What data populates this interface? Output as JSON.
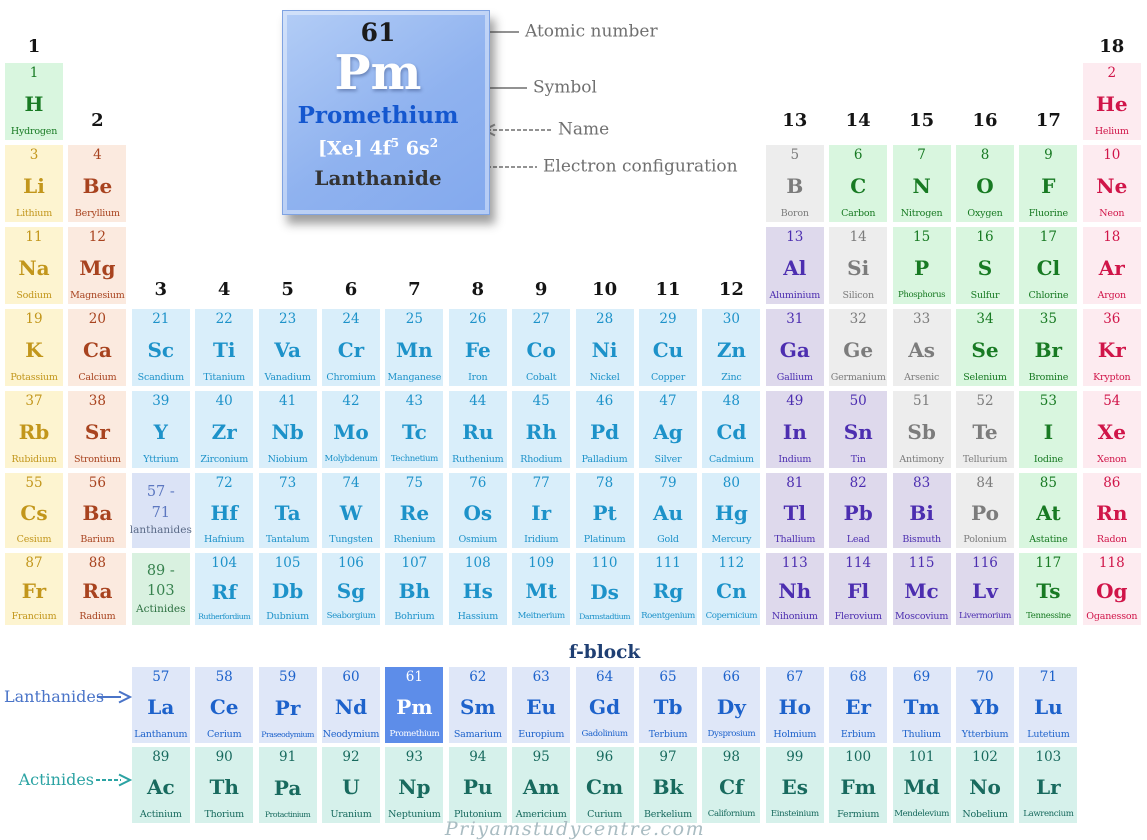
{
  "detail_card": {
    "atomic_number": "61",
    "symbol": "Pm",
    "name": "Promethium",
    "electron_config": [
      {
        "t": "[Xe] 4f"
      },
      {
        "t": "5",
        "sup": true
      },
      {
        "t": " 6s"
      },
      {
        "t": "2",
        "sup": true
      }
    ],
    "category": "Lanthanide"
  },
  "annotations": [
    "Atomic number",
    "Symbol",
    "Name",
    "Electron configuration"
  ],
  "group_labels": [
    "1",
    "2",
    "3",
    "4",
    "5",
    "6",
    "7",
    "8",
    "9",
    "10",
    "11",
    "12",
    "13",
    "14",
    "15",
    "16",
    "17",
    "18"
  ],
  "series_labels": {
    "lanthanides": "Lanthanides",
    "actinides": "Actinides"
  },
  "fblock_label": "f-block",
  "watermark": "Priyamstudycentre.com",
  "colors": {
    "alkali": {
      "bg": "#fdf4d0",
      "fg": "#c2961b"
    },
    "alkaline": {
      "bg": "#fbeadf",
      "fg": "#a8431f"
    },
    "transition": {
      "bg": "#d9eefa",
      "fg": "#1d92c9"
    },
    "post": {
      "bg": "#ded9ec",
      "fg": "#4c2eb0"
    },
    "metalloid": {
      "bg": "#ededed",
      "fg": "#7c7c7c"
    },
    "nonmetal": {
      "bg": "#d9f6df",
      "fg": "#187a23"
    },
    "noble": {
      "bg": "#fdebf0",
      "fg": "#d01549"
    },
    "lan": {
      "bg": "#dfe7f8",
      "fg": "#1d62cb"
    },
    "lan_hl": {
      "bg": "#5d8de9",
      "fg": "#ffffff"
    },
    "act": {
      "bg": "#d6f1eb",
      "fg": "#186a5e"
    },
    "ph_lan": {
      "bg": "#dbe3f6",
      "fg": "#5c77c0",
      "fg2": "#5a6a87"
    },
    "ph_act": {
      "bg": "#d9f1e0",
      "fg": "#36824e",
      "fg2": "#2c7040"
    },
    "card_number": "#1b1b1b",
    "card_name_blue": "#1457cf",
    "card_category": "#333333",
    "annotation_gray": "#6f6f6f",
    "arrow_gray": "#929292",
    "group_label_dark": "#141414",
    "lan_label_blue": "#4a74c8",
    "act_label_teal": "#2ba3a3",
    "fblock_dark": "#1f3f73",
    "watermark_gray": "#a9bcc2"
  },
  "placeholders": [
    {
      "lines": [
        "57 -",
        "71",
        "lanthanides"
      ],
      "cat": "ph_lan",
      "col": 3,
      "row": 6,
      "key": "lanthanides"
    },
    {
      "lines": [
        "89 -",
        "103",
        "Actinides"
      ],
      "cat": "ph_act",
      "col": 3,
      "row": 7,
      "key": "actinides"
    }
  ],
  "elements": [
    {
      "n": "1",
      "s": "H",
      "name": "Hydrogen",
      "cat": "nonmetal",
      "col": 1,
      "row": 1
    },
    {
      "n": "2",
      "s": "He",
      "name": "Helium",
      "cat": "noble",
      "col": 18,
      "row": 1
    },
    {
      "n": "3",
      "s": "Li",
      "name": "Lithium",
      "cat": "alkali",
      "col": 1,
      "row": 2
    },
    {
      "n": "4",
      "s": "Be",
      "name": "Beryllium",
      "cat": "alkaline",
      "col": 2,
      "row": 2
    },
    {
      "n": "5",
      "s": "B",
      "name": "Boron",
      "cat": "metalloid",
      "col": 13,
      "row": 2
    },
    {
      "n": "6",
      "s": "C",
      "name": "Carbon",
      "cat": "nonmetal",
      "col": 14,
      "row": 2
    },
    {
      "n": "7",
      "s": "N",
      "name": "Nitrogen",
      "cat": "nonmetal",
      "col": 15,
      "row": 2
    },
    {
      "n": "8",
      "s": "O",
      "name": "Oxygen",
      "cat": "nonmetal",
      "col": 16,
      "row": 2
    },
    {
      "n": "9",
      "s": "F",
      "name": "Fluorine",
      "cat": "nonmetal",
      "col": 17,
      "row": 2
    },
    {
      "n": "10",
      "s": "Ne",
      "name": "Neon",
      "cat": "noble",
      "col": 18,
      "row": 2
    },
    {
      "n": "11",
      "s": "Na",
      "name": "Sodium",
      "cat": "alkali",
      "col": 1,
      "row": 3
    },
    {
      "n": "12",
      "s": "Mg",
      "name": "Magnesium",
      "cat": "alkaline",
      "col": 2,
      "row": 3
    },
    {
      "n": "13",
      "s": "Al",
      "name": "Aluminium",
      "cat": "post",
      "col": 13,
      "row": 3
    },
    {
      "n": "14",
      "s": "Si",
      "name": "Silicon",
      "cat": "metalloid",
      "col": 14,
      "row": 3
    },
    {
      "n": "15",
      "s": "P",
      "name": "Phosphorus",
      "cat": "nonmetal",
      "col": 15,
      "row": 3
    },
    {
      "n": "16",
      "s": "S",
      "name": "Sulfur",
      "cat": "nonmetal",
      "col": 16,
      "row": 3
    },
    {
      "n": "17",
      "s": "Cl",
      "name": "Chlorine",
      "cat": "nonmetal",
      "col": 17,
      "row": 3
    },
    {
      "n": "18",
      "s": "Ar",
      "name": "Argon",
      "cat": "noble",
      "col": 18,
      "row": 3
    },
    {
      "n": "19",
      "s": "K",
      "name": "Potassium",
      "cat": "alkali",
      "col": 1,
      "row": 4
    },
    {
      "n": "20",
      "s": "Ca",
      "name": "Calcium",
      "cat": "alkaline",
      "col": 2,
      "row": 4
    },
    {
      "n": "21",
      "s": "Sc",
      "name": "Scandium",
      "cat": "transition",
      "col": 3,
      "row": 4
    },
    {
      "n": "22",
      "s": "Ti",
      "name": "Titanium",
      "cat": "transition",
      "col": 4,
      "row": 4
    },
    {
      "n": "23",
      "s": "Va",
      "name": "Vanadium",
      "cat": "transition",
      "col": 5,
      "row": 4
    },
    {
      "n": "24",
      "s": "Cr",
      "name": "Chromium",
      "cat": "transition",
      "col": 6,
      "row": 4
    },
    {
      "n": "25",
      "s": "Mn",
      "name": "Manganese",
      "cat": "transition",
      "col": 7,
      "row": 4
    },
    {
      "n": "26",
      "s": "Fe",
      "name": "Iron",
      "cat": "transition",
      "col": 8,
      "row": 4
    },
    {
      "n": "27",
      "s": "Co",
      "name": "Cobalt",
      "cat": "transition",
      "col": 9,
      "row": 4
    },
    {
      "n": "28",
      "s": "Ni",
      "name": "Nickel",
      "cat": "transition",
      "col": 10,
      "row": 4
    },
    {
      "n": "29",
      "s": "Cu",
      "name": "Copper",
      "cat": "transition",
      "col": 11,
      "row": 4
    },
    {
      "n": "30",
      "s": "Zn",
      "name": "Zinc",
      "cat": "transition",
      "col": 12,
      "row": 4
    },
    {
      "n": "31",
      "s": "Ga",
      "name": "Gallium",
      "cat": "post",
      "col": 13,
      "row": 4
    },
    {
      "n": "32",
      "s": "Ge",
      "name": "Germanium",
      "cat": "metalloid",
      "col": 14,
      "row": 4
    },
    {
      "n": "33",
      "s": "As",
      "name": "Arsenic",
      "cat": "metalloid",
      "col": 15,
      "row": 4
    },
    {
      "n": "34",
      "s": "Se",
      "name": "Selenium",
      "cat": "nonmetal",
      "col": 16,
      "row": 4
    },
    {
      "n": "35",
      "s": "Br",
      "name": "Bromine",
      "cat": "nonmetal",
      "col": 17,
      "row": 4
    },
    {
      "n": "36",
      "s": "Kr",
      "name": "Krypton",
      "cat": "noble",
      "col": 18,
      "row": 4
    },
    {
      "n": "37",
      "s": "Rb",
      "name": "Rubidium",
      "cat": "alkali",
      "col": 1,
      "row": 5
    },
    {
      "n": "38",
      "s": "Sr",
      "name": "Strontium",
      "cat": "alkaline",
      "col": 2,
      "row": 5
    },
    {
      "n": "39",
      "s": "Y",
      "name": "Yttrium",
      "cat": "transition",
      "col": 3,
      "row": 5
    },
    {
      "n": "40",
      "s": "Zr",
      "name": "Zirconium",
      "cat": "transition",
      "col": 4,
      "row": 5
    },
    {
      "n": "41",
      "s": "Nb",
      "name": "Niobium",
      "cat": "transition",
      "col": 5,
      "row": 5
    },
    {
      "n": "42",
      "s": "Mo",
      "name": "Molybdenum",
      "cat": "transition",
      "col": 6,
      "row": 5
    },
    {
      "n": "43",
      "s": "Tc",
      "name": "Technetium",
      "cat": "transition",
      "col": 7,
      "row": 5
    },
    {
      "n": "44",
      "s": "Ru",
      "name": "Ruthenium",
      "cat": "transition",
      "col": 8,
      "row": 5
    },
    {
      "n": "45",
      "s": "Rh",
      "name": "Rhodium",
      "cat": "transition",
      "col": 9,
      "row": 5
    },
    {
      "n": "46",
      "s": "Pd",
      "name": "Palladium",
      "cat": "transition",
      "col": 10,
      "row": 5
    },
    {
      "n": "47",
      "s": "Ag",
      "name": "Silver",
      "cat": "transition",
      "col": 11,
      "row": 5
    },
    {
      "n": "48",
      "s": "Cd",
      "name": "Cadmium",
      "cat": "transition",
      "col": 12,
      "row": 5
    },
    {
      "n": "49",
      "s": "In",
      "name": "Indium",
      "cat": "post",
      "col": 13,
      "row": 5
    },
    {
      "n": "50",
      "s": "Sn",
      "name": "Tin",
      "cat": "post",
      "col": 14,
      "row": 5
    },
    {
      "n": "51",
      "s": "Sb",
      "name": "Antimony",
      "cat": "metalloid",
      "col": 15,
      "row": 5
    },
    {
      "n": "52",
      "s": "Te",
      "name": "Tellurium",
      "cat": "metalloid",
      "col": 16,
      "row": 5
    },
    {
      "n": "53",
      "s": "I",
      "name": "Iodine",
      "cat": "nonmetal",
      "col": 17,
      "row": 5
    },
    {
      "n": "54",
      "s": "Xe",
      "name": "Xenon",
      "cat": "noble",
      "col": 18,
      "row": 5
    },
    {
      "n": "55",
      "s": "Cs",
      "name": "Cesium",
      "cat": "alkali",
      "col": 1,
      "row": 6
    },
    {
      "n": "56",
      "s": "Ba",
      "name": "Barium",
      "cat": "alkaline",
      "col": 2,
      "row": 6
    },
    {
      "n": "72",
      "s": "Hf",
      "name": "Hafnium",
      "cat": "transition",
      "col": 4,
      "row": 6
    },
    {
      "n": "73",
      "s": "Ta",
      "name": "Tantalum",
      "cat": "transition",
      "col": 5,
      "row": 6
    },
    {
      "n": "74",
      "s": "W",
      "name": "Tungsten",
      "cat": "transition",
      "col": 6,
      "row": 6
    },
    {
      "n": "75",
      "s": "Re",
      "name": "Rhenium",
      "cat": "transition",
      "col": 7,
      "row": 6
    },
    {
      "n": "76",
      "s": "Os",
      "name": "Osmium",
      "cat": "transition",
      "col": 8,
      "row": 6
    },
    {
      "n": "77",
      "s": "Ir",
      "name": "Iridium",
      "cat": "transition",
      "col": 9,
      "row": 6
    },
    {
      "n": "78",
      "s": "Pt",
      "name": "Platinum",
      "cat": "transition",
      "col": 10,
      "row": 6
    },
    {
      "n": "79",
      "s": "Au",
      "name": "Gold",
      "cat": "transition",
      "col": 11,
      "row": 6
    },
    {
      "n": "80",
      "s": "Hg",
      "name": "Mercury",
      "cat": "transition",
      "col": 12,
      "row": 6
    },
    {
      "n": "81",
      "s": "Tl",
      "name": "Thallium",
      "cat": "post",
      "col": 13,
      "row": 6
    },
    {
      "n": "82",
      "s": "Pb",
      "name": "Lead",
      "cat": "post",
      "col": 14,
      "row": 6
    },
    {
      "n": "83",
      "s": "Bi",
      "name": "Bismuth",
      "cat": "post",
      "col": 15,
      "row": 6
    },
    {
      "n": "84",
      "s": "Po",
      "name": "Polonium",
      "cat": "metalloid",
      "col": 16,
      "row": 6
    },
    {
      "n": "85",
      "s": "At",
      "name": "Astatine",
      "cat": "nonmetal",
      "col": 17,
      "row": 6
    },
    {
      "n": "86",
      "s": "Rn",
      "name": "Radon",
      "cat": "noble",
      "col": 18,
      "row": 6
    },
    {
      "n": "87",
      "s": "Fr",
      "name": "Francium",
      "cat": "alkali",
      "col": 1,
      "row": 7
    },
    {
      "n": "88",
      "s": "Ra",
      "name": "Radium",
      "cat": "alkaline",
      "col": 2,
      "row": 7
    },
    {
      "n": "104",
      "s": "Rf",
      "name": "Rutherfordium",
      "cat": "transition",
      "col": 4,
      "row": 7
    },
    {
      "n": "105",
      "s": "Db",
      "name": "Dubnium",
      "cat": "transition",
      "col": 5,
      "row": 7
    },
    {
      "n": "106",
      "s": "Sg",
      "name": "Seaborgium",
      "cat": "transition",
      "col": 6,
      "row": 7
    },
    {
      "n": "107",
      "s": "Bh",
      "name": "Bohrium",
      "cat": "transition",
      "col": 7,
      "row": 7
    },
    {
      "n": "108",
      "s": "Hs",
      "name": "Hassium",
      "cat": "transition",
      "col": 8,
      "row": 7
    },
    {
      "n": "109",
      "s": "Mt",
      "name": "Meitnerium",
      "cat": "transition",
      "col": 9,
      "row": 7
    },
    {
      "n": "110",
      "s": "Ds",
      "name": "Darmstadtium",
      "cat": "transition",
      "col": 10,
      "row": 7
    },
    {
      "n": "111",
      "s": "Rg",
      "name": "Roentgenium",
      "cat": "transition",
      "col": 11,
      "row": 7
    },
    {
      "n": "112",
      "s": "Cn",
      "name": "Copernicium",
      "cat": "transition",
      "col": 12,
      "row": 7
    },
    {
      "n": "113",
      "s": "Nh",
      "name": "Nihonium",
      "cat": "post",
      "col": 13,
      "row": 7
    },
    {
      "n": "114",
      "s": "Fl",
      "name": "Flerovium",
      "cat": "post",
      "col": 14,
      "row": 7
    },
    {
      "n": "115",
      "s": "Mc",
      "name": "Moscovium",
      "cat": "post",
      "col": 15,
      "row": 7
    },
    {
      "n": "116",
      "s": "Lv",
      "name": "Livermorium",
      "cat": "post",
      "col": 16,
      "row": 7
    },
    {
      "n": "117",
      "s": "Ts",
      "name": "Tennessine",
      "cat": "nonmetal",
      "col": 17,
      "row": 7
    },
    {
      "n": "118",
      "s": "Og",
      "name": "Oganesson",
      "cat": "noble",
      "col": 18,
      "row": 7
    },
    {
      "n": "57",
      "s": "La",
      "name": "Lanthanum",
      "cat": "lan",
      "col": 3,
      "row": 8
    },
    {
      "n": "58",
      "s": "Ce",
      "name": "Cerium",
      "cat": "lan",
      "col": 4,
      "row": 8
    },
    {
      "n": "59",
      "s": "Pr",
      "name": "Praseodymium",
      "cat": "lan",
      "col": 5,
      "row": 8
    },
    {
      "n": "60",
      "s": "Nd",
      "name": "Neodymium",
      "cat": "lan",
      "col": 6,
      "row": 8
    },
    {
      "n": "61",
      "s": "Pm",
      "name": "Promethium",
      "cat": "lan_hl",
      "col": 7,
      "row": 8
    },
    {
      "n": "62",
      "s": "Sm",
      "name": "Samarium",
      "cat": "lan",
      "col": 8,
      "row": 8
    },
    {
      "n": "63",
      "s": "Eu",
      "name": "Europium",
      "cat": "lan",
      "col": 9,
      "row": 8
    },
    {
      "n": "64",
      "s": "Gd",
      "name": "Gadolinium",
      "cat": "lan",
      "col": 10,
      "row": 8
    },
    {
      "n": "65",
      "s": "Tb",
      "name": "Terbium",
      "cat": "lan",
      "col": 11,
      "row": 8
    },
    {
      "n": "66",
      "s": "Dy",
      "name": "Dysprosium",
      "cat": "lan",
      "col": 12,
      "row": 8
    },
    {
      "n": "67",
      "s": "Ho",
      "name": "Holmium",
      "cat": "lan",
      "col": 13,
      "row": 8
    },
    {
      "n": "68",
      "s": "Er",
      "name": "Erbium",
      "cat": "lan",
      "col": 14,
      "row": 8
    },
    {
      "n": "69",
      "s": "Tm",
      "name": "Thulium",
      "cat": "lan",
      "col": 15,
      "row": 8
    },
    {
      "n": "70",
      "s": "Yb",
      "name": "Ytterbium",
      "cat": "lan",
      "col": 16,
      "row": 8
    },
    {
      "n": "71",
      "s": "Lu",
      "name": "Lutetium",
      "cat": "lan",
      "col": 17,
      "row": 8
    },
    {
      "n": "89",
      "s": "Ac",
      "name": "Actinium",
      "cat": "act",
      "col": 3,
      "row": 9
    },
    {
      "n": "90",
      "s": "Th",
      "name": "Thorium",
      "cat": "act",
      "col": 4,
      "row": 9
    },
    {
      "n": "91",
      "s": "Pa",
      "name": "Protactinium",
      "cat": "act",
      "col": 5,
      "row": 9
    },
    {
      "n": "92",
      "s": "U",
      "name": "Uranium",
      "cat": "act",
      "col": 6,
      "row": 9
    },
    {
      "n": "93",
      "s": "Np",
      "name": "Neptunium",
      "cat": "act",
      "col": 7,
      "row": 9
    },
    {
      "n": "94",
      "s": "Pu",
      "name": "Plutonium",
      "cat": "act",
      "col": 8,
      "row": 9
    },
    {
      "n": "95",
      "s": "Am",
      "name": "Americium",
      "cat": "act",
      "col": 9,
      "row": 9
    },
    {
      "n": "96",
      "s": "Cm",
      "name": "Curium",
      "cat": "act",
      "col": 10,
      "row": 9
    },
    {
      "n": "97",
      "s": "Bk",
      "name": "Berkelium",
      "cat": "act",
      "col": 11,
      "row": 9
    },
    {
      "n": "98",
      "s": "Cf",
      "name": "Californium",
      "cat": "act",
      "col": 12,
      "row": 9
    },
    {
      "n": "99",
      "s": "Es",
      "name": "Einsteinium",
      "cat": "act",
      "col": 13,
      "row": 9
    },
    {
      "n": "100",
      "s": "Fm",
      "name": "Fermium",
      "cat": "act",
      "col": 14,
      "row": 9
    },
    {
      "n": "101",
      "s": "Md",
      "name": "Mendelevium",
      "cat": "act",
      "col": 15,
      "row": 9
    },
    {
      "n": "102",
      "s": "No",
      "name": "Nobelium",
      "cat": "act",
      "col": 16,
      "row": 9
    },
    {
      "n": "103",
      "s": "Lr",
      "name": "Lawrencium",
      "cat": "act",
      "col": 17,
      "row": 9
    }
  ]
}
